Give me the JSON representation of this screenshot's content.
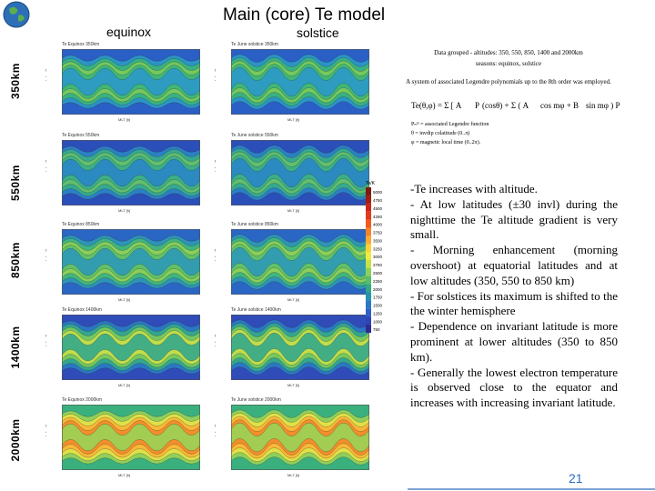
{
  "header": {
    "title": "Main (core) Te model",
    "columns": [
      "equinox",
      "solstice"
    ]
  },
  "rows": [
    {
      "altitude_label": "350km",
      "equinox_title": "Te    Equinox     350km",
      "solstice_title": "Te    June solstice     350km"
    },
    {
      "altitude_label": "550km",
      "equinox_title": "Te    Equinox     550km",
      "solstice_title": "Te    June solstice     550km"
    },
    {
      "altitude_label": "850km",
      "equinox_title": "Te    Equinox     850km",
      "solstice_title": "Te    June solstice     850km"
    },
    {
      "altitude_label": "1400km",
      "equinox_title": "Te    Equinox     1400km",
      "solstice_title": "Te    June solstice     1400km"
    },
    {
      "altitude_label": "2000km",
      "equinox_title": "Te    Equinox     2000km",
      "solstice_title": "Te    June solstice     2000km"
    }
  ],
  "axes": {
    "ylabel": "invdipl [deg]",
    "xlabel": "MLT [h]",
    "yticks": [
      "90",
      "60",
      "30",
      "0",
      "−30",
      "−60",
      "−90"
    ],
    "xticks": [
      "0",
      "2",
      "4",
      "6",
      "8",
      "10",
      "12",
      "14",
      "16",
      "18",
      "20",
      "22",
      "24"
    ]
  },
  "colorbar": {
    "title": "Te/K",
    "ticks": [
      "5000",
      "4750",
      "4500",
      "4250",
      "4000",
      "3750",
      "3500",
      "3250",
      "3000",
      "2750",
      "2500",
      "2250",
      "2000",
      "1750",
      "1500",
      "1250",
      "1000",
      "750"
    ],
    "colors": [
      "#7a1a10",
      "#a01e12",
      "#c8281a",
      "#e23a1e",
      "#f05a20",
      "#f6832a",
      "#fba933",
      "#fdd03c",
      "#f1ea40",
      "#c7e04a",
      "#8fd05a",
      "#58bd6e",
      "#34a882",
      "#2893a8",
      "#2a79c4",
      "#2f5fc8",
      "#3044b4",
      "#2e2a94"
    ]
  },
  "info": {
    "line1": "Data grouped - altitudes: 350, 550, 850, 1400 and 2000km",
    "line2": "seasons: equinox, solstice",
    "line3": "A system of associated Legendre polynomials up to the 8th order was employed.",
    "def1": "Pₙᵐ = associated Legendre function",
    "def2": "θ = invdip colatitude (0..π)",
    "def3": "φ = magnetic local time (0..2π)."
  },
  "notes": [
    "-Te increases with altitude.",
    "- At low latitudes (±30 invl) during the nighttime the Te altitude gradient is very small.",
    "- Morning enhancement (morning overshoot) at equatorial latitudes and at low altitudes (350, 550 to 850 km)",
    "- For solstices its maximum is shifted to the the winter hemisphere",
    "- Dependence on invariant latitude is more prominent at lower altitudes (350 to 850 km).",
    "- Generally the lowest electron temperature is observed close to the equator and increases with increasing invariant latitude."
  ],
  "page_number": "21"
}
